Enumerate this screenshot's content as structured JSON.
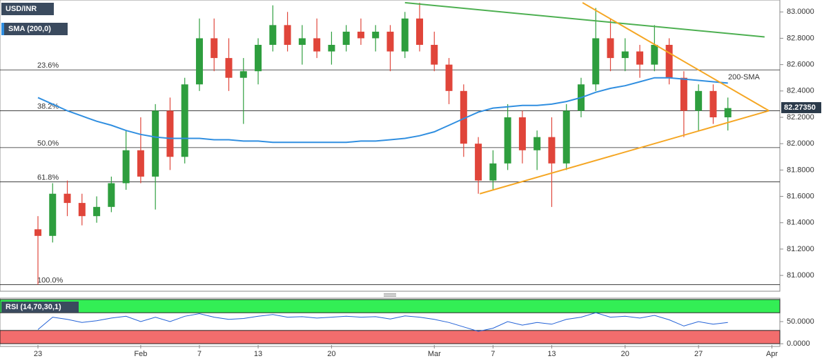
{
  "chart_data": [
    {
      "type": "candlestick",
      "title": "USD/INR",
      "categories": [
        "23",
        null,
        null,
        null,
        null,
        null,
        null,
        "Feb",
        null,
        null,
        null,
        "7",
        null,
        null,
        null,
        "13",
        null,
        null,
        null,
        null,
        "20",
        null,
        null,
        null,
        null,
        null,
        null,
        "Mar",
        null,
        null,
        null,
        "7",
        null,
        null,
        null,
        "13",
        null,
        null,
        null,
        null,
        "20",
        null,
        null,
        null,
        null,
        "27",
        null,
        null,
        null,
        null,
        "Apr"
      ],
      "open": [
        81.35,
        81.3,
        81.62,
        81.55,
        81.45,
        81.52,
        81.7,
        81.95,
        81.75,
        82.25,
        81.9,
        82.45,
        82.8,
        82.65,
        82.5,
        82.55,
        82.75,
        82.9,
        82.75,
        82.8,
        82.7,
        82.75,
        82.85,
        82.8,
        82.85,
        82.7,
        82.95,
        82.75,
        82.6,
        82.4,
        82.0,
        81.72,
        81.85,
        82.2,
        81.95,
        82.05,
        81.85,
        82.25,
        82.45,
        82.8,
        82.65,
        82.7,
        82.6,
        82.75,
        82.5,
        82.25,
        82.4,
        82.2,
        null,
        null,
        null
      ],
      "high": [
        81.45,
        81.7,
        81.72,
        81.62,
        81.6,
        81.75,
        82.1,
        82.2,
        82.3,
        82.35,
        82.5,
        82.95,
        82.95,
        82.8,
        82.65,
        82.8,
        83.05,
        83.0,
        82.9,
        82.95,
        82.85,
        82.9,
        82.95,
        82.9,
        82.9,
        83.0,
        83.07,
        82.85,
        82.65,
        82.45,
        82.05,
        81.95,
        82.3,
        82.25,
        82.1,
        82.2,
        82.3,
        82.5,
        83.03,
        82.95,
        82.8,
        82.75,
        82.9,
        82.8,
        82.55,
        82.45,
        82.45,
        82.35,
        null,
        null,
        null
      ],
      "low": [
        80.93,
        81.25,
        81.45,
        81.38,
        81.4,
        81.48,
        81.65,
        81.7,
        81.5,
        81.8,
        81.85,
        82.4,
        82.55,
        82.4,
        82.15,
        82.45,
        82.7,
        82.7,
        82.6,
        82.65,
        82.6,
        82.7,
        82.75,
        82.7,
        82.55,
        82.65,
        82.7,
        82.55,
        82.3,
        81.9,
        81.62,
        81.65,
        81.8,
        81.85,
        81.8,
        81.52,
        81.8,
        82.2,
        82.4,
        82.55,
        82.55,
        82.5,
        82.55,
        82.45,
        82.05,
        82.1,
        82.15,
        82.1,
        null,
        null,
        null
      ],
      "close": [
        81.3,
        81.62,
        81.55,
        81.45,
        81.52,
        81.7,
        81.95,
        81.75,
        82.25,
        81.9,
        82.45,
        82.8,
        82.65,
        82.5,
        82.55,
        82.75,
        82.9,
        82.75,
        82.8,
        82.7,
        82.75,
        82.85,
        82.8,
        82.85,
        82.7,
        82.95,
        82.75,
        82.6,
        82.4,
        82.0,
        81.72,
        81.85,
        82.2,
        81.95,
        82.05,
        81.85,
        82.25,
        82.45,
        82.8,
        82.65,
        82.7,
        82.6,
        82.75,
        82.5,
        82.25,
        82.4,
        82.2,
        82.27,
        null,
        null,
        null
      ],
      "up_color": "#2e9e3e",
      "down_color": "#e0453a",
      "series": [
        {
          "name": "SMA (200,0)",
          "color": "#2f8ee0",
          "values": [
            82.35,
            82.3,
            82.25,
            82.21,
            82.17,
            82.14,
            82.1,
            82.07,
            82.05,
            82.04,
            82.04,
            82.04,
            82.03,
            82.03,
            82.02,
            82.02,
            82.01,
            82.01,
            82.01,
            82.01,
            82.01,
            82.01,
            82.02,
            82.02,
            82.03,
            82.04,
            82.06,
            82.09,
            82.14,
            82.19,
            82.24,
            82.27,
            82.28,
            82.29,
            82.29,
            82.3,
            82.32,
            82.35,
            82.39,
            82.42,
            82.44,
            82.47,
            82.5,
            82.5,
            82.49,
            82.48,
            82.47,
            82.46,
            null,
            null,
            null
          ]
        }
      ],
      "annotation": "200-SMA",
      "fib_levels": [
        {
          "label": "23.6%",
          "value": 82.56
        },
        {
          "label": "38.2%",
          "value": 82.25
        },
        {
          "label": "50.0%",
          "value": 81.97
        },
        {
          "label": "61.8%",
          "value": 81.71
        },
        {
          "label": "100.0%",
          "value": 80.93
        }
      ],
      "trendlines": [
        {
          "color": "#4caf50",
          "x": [
            25.0,
            49.5
          ],
          "y": [
            83.07,
            82.81
          ]
        },
        {
          "color": "#f5a623",
          "x": [
            37.1,
            49.8
          ],
          "y": [
            83.07,
            82.25
          ]
        },
        {
          "color": "#f5a623",
          "x": [
            30.1,
            49.8
          ],
          "y": [
            81.62,
            82.25
          ]
        }
      ],
      "last_price": {
        "value": 82.2735,
        "label": "82.27350"
      },
      "ylim": [
        80.88,
        83.08
      ],
      "yticks": [
        {
          "value": 81.0,
          "label": "81.0000"
        },
        {
          "value": 81.2,
          "label": "81.2000"
        },
        {
          "value": 81.4,
          "label": "81.4000"
        },
        {
          "value": 81.6,
          "label": "81.6000"
        },
        {
          "value": 81.8,
          "label": "81.8000"
        },
        {
          "value": 82.0,
          "label": "82.0000"
        },
        {
          "value": 82.2,
          "label": "82.2000"
        },
        {
          "value": 82.4,
          "label": "82.4000"
        },
        {
          "value": 82.6,
          "label": "82.6000"
        },
        {
          "value": 82.8,
          "label": "82.8000"
        },
        {
          "value": 83.0,
          "label": "83.0000"
        }
      ]
    },
    {
      "type": "line",
      "title": "RSI (14,70,30,1)",
      "overbought": 70,
      "oversold": 30,
      "series": [
        {
          "name": "RSI",
          "color": "#1f5fd6",
          "values": [
            32,
            60,
            55,
            48,
            52,
            58,
            62,
            50,
            60,
            50,
            62,
            68,
            60,
            55,
            57,
            62,
            66,
            60,
            61,
            58,
            60,
            62,
            60,
            61,
            56,
            63,
            60,
            55,
            48,
            38,
            28,
            35,
            50,
            42,
            48,
            44,
            55,
            60,
            70,
            60,
            62,
            58,
            64,
            54,
            40,
            50,
            44,
            48,
            null,
            null,
            null
          ]
        }
      ],
      "ylim": [
        -3,
        103
      ],
      "yticks": [
        {
          "value": 0,
          "label": "0.0000"
        },
        {
          "value": 50,
          "label": "50.0000"
        }
      ]
    }
  ]
}
